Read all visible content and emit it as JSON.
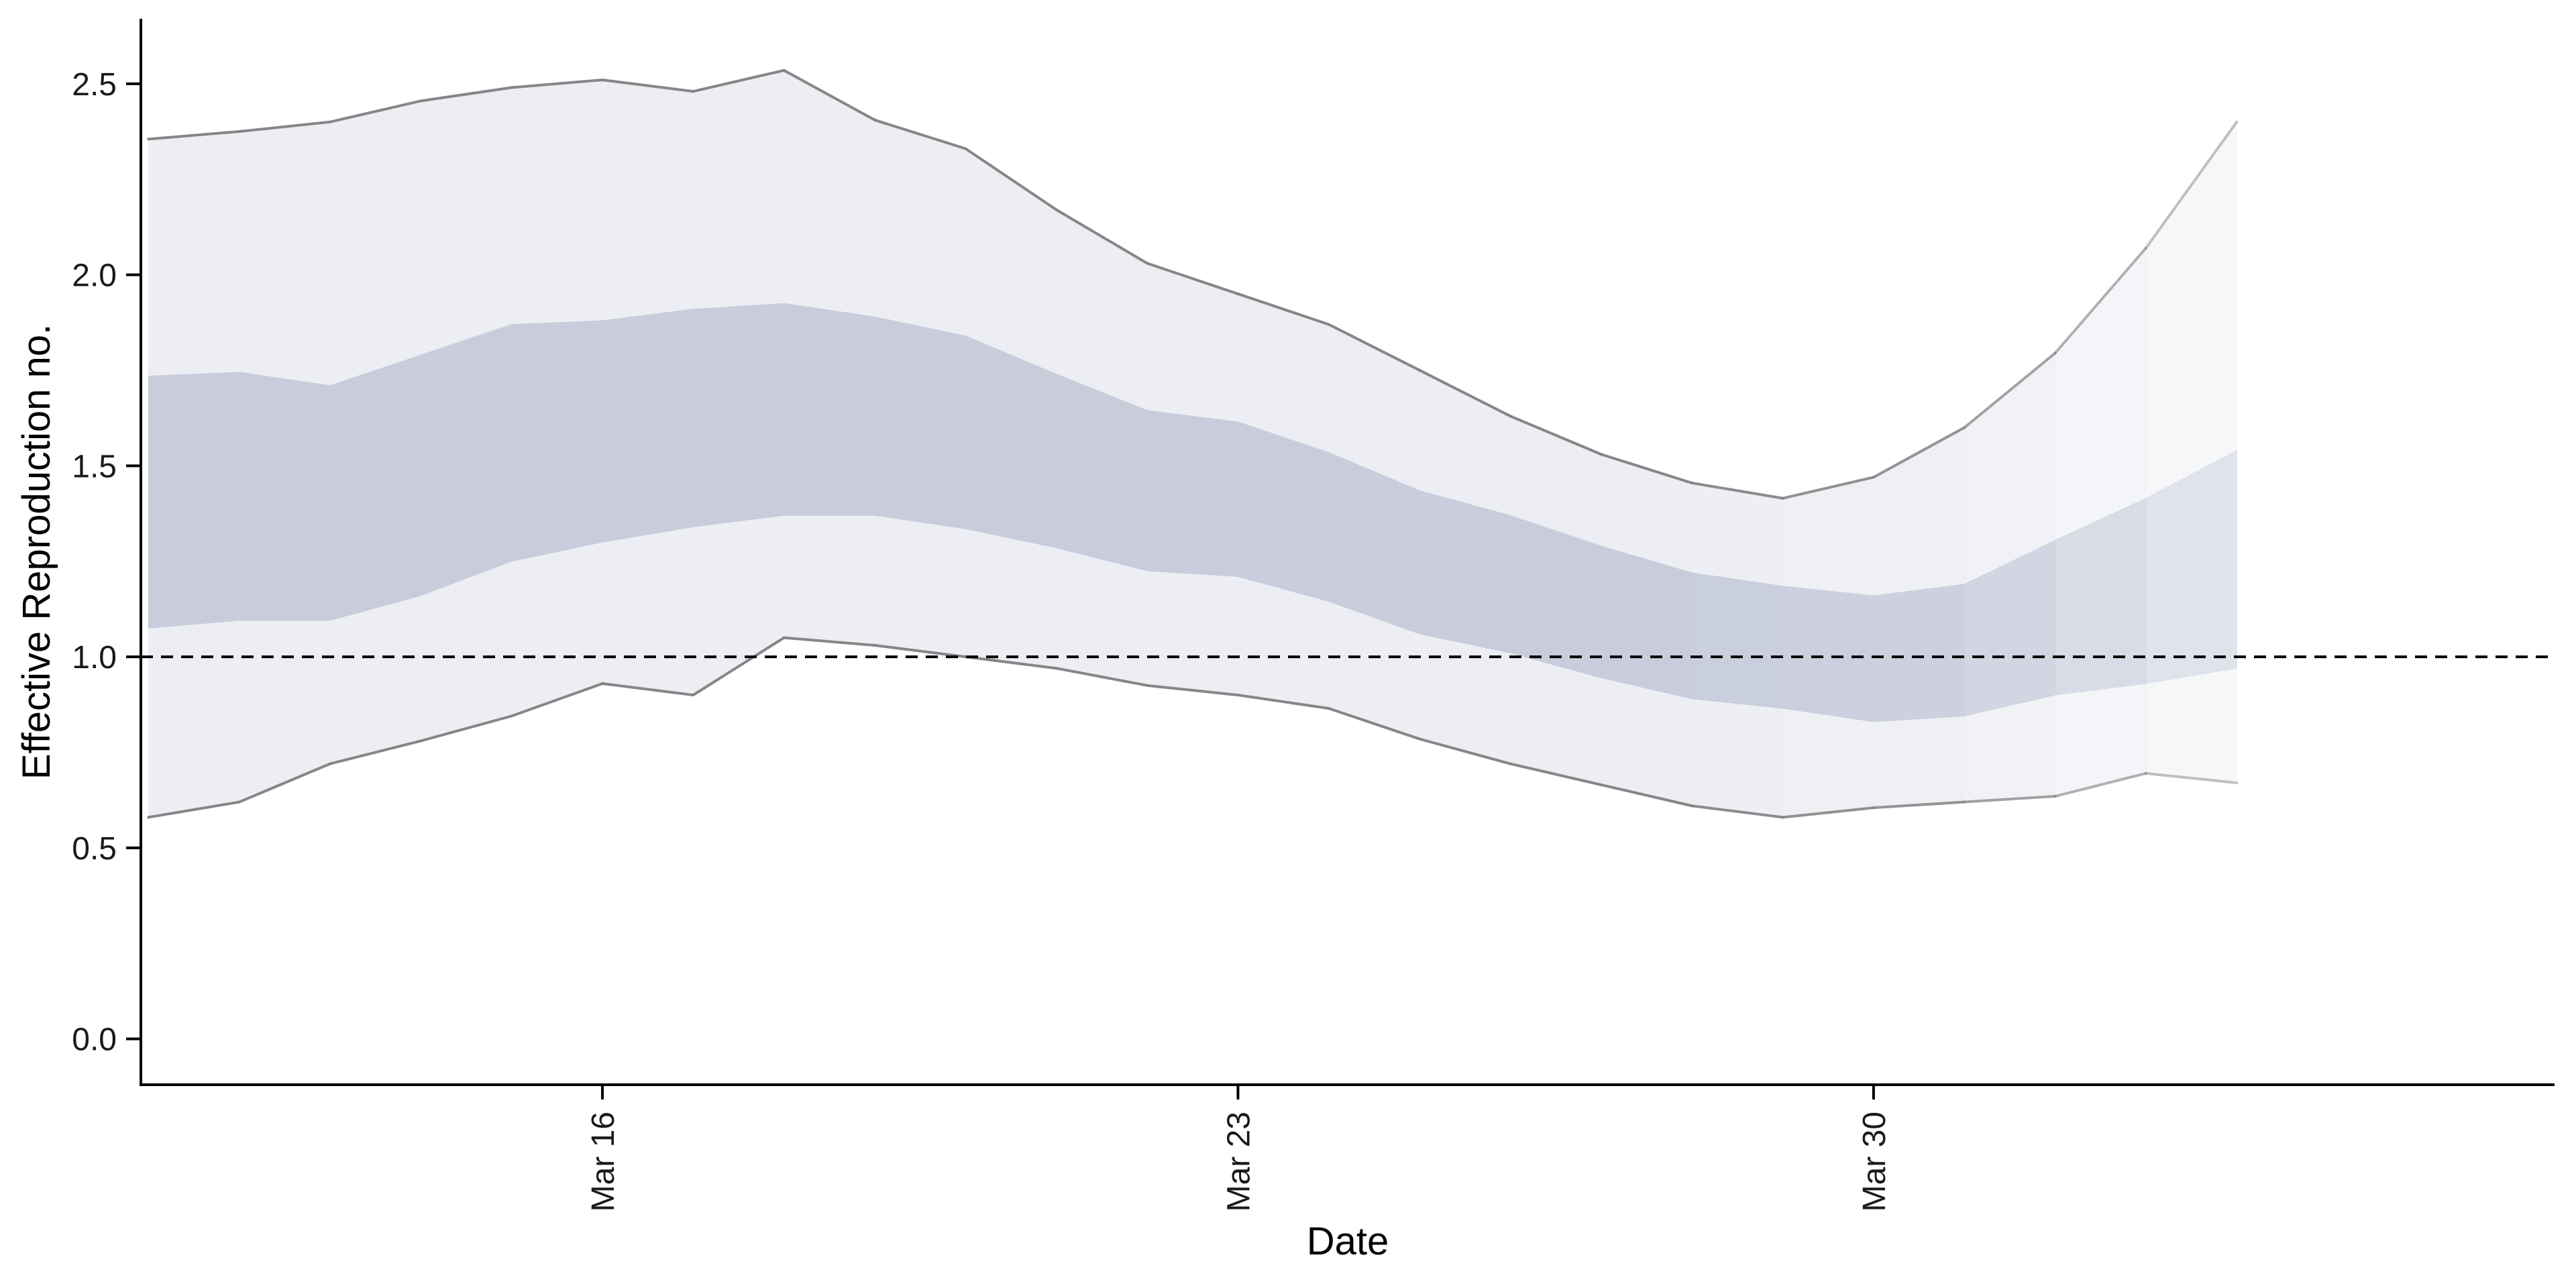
{
  "chart_data": {
    "type": "area",
    "xlabel": "Date",
    "ylabel": "Effective Reproduction no.",
    "ylim": [
      -0.12,
      2.67
    ],
    "xlim": [
      "2020-03-10T22:00",
      "2020-04-06T12:00"
    ],
    "x_ticks": [
      {
        "date": "2020-03-16",
        "label": "Mar 16"
      },
      {
        "date": "2020-03-23",
        "label": "Mar 23"
      },
      {
        "date": "2020-03-30",
        "label": "Mar 30"
      }
    ],
    "y_ticks": [
      {
        "value": 0.0,
        "label": "0.0"
      },
      {
        "value": 0.5,
        "label": "0.5"
      },
      {
        "value": 1.0,
        "label": "1.0"
      },
      {
        "value": 1.5,
        "label": "1.5"
      },
      {
        "value": 2.0,
        "label": "2.0"
      },
      {
        "value": 2.5,
        "label": "2.5"
      }
    ],
    "reference_line": {
      "y": 1.0,
      "style": "dashed"
    },
    "grid": false,
    "colors": {
      "outer_band": "#eceef3",
      "inner_band": "#c8ccdb",
      "bounds_line": "#808080",
      "reference_line": "#000000",
      "axis": "#000000"
    },
    "series": [
      {
        "dates": [
          "2020-03-11",
          "2020-03-12",
          "2020-03-13",
          "2020-03-14",
          "2020-03-15",
          "2020-03-16",
          "2020-03-17",
          "2020-03-18",
          "2020-03-19",
          "2020-03-20",
          "2020-03-21",
          "2020-03-22",
          "2020-03-23",
          "2020-03-24",
          "2020-03-25",
          "2020-03-26",
          "2020-03-27",
          "2020-03-28",
          "2020-03-29",
          "2020-03-30",
          "2020-03-31",
          "2020-04-01",
          "2020-04-02",
          "2020-04-03",
          "2020-04-04"
        ],
        "lower_90": [
          0.58,
          0.62,
          0.72,
          0.78,
          0.845,
          0.93,
          0.9,
          1.05,
          1.03,
          1.0,
          0.97,
          0.925,
          0.9,
          0.865,
          0.785,
          0.72,
          0.665,
          0.61,
          0.58,
          0.605,
          0.62,
          0.635,
          0.695,
          0.67,
          null
        ],
        "upper_90": [
          2.355,
          2.375,
          2.4,
          2.455,
          2.49,
          2.51,
          2.48,
          2.535,
          2.405,
          2.33,
          2.17,
          2.03,
          1.95,
          1.87,
          1.75,
          1.63,
          1.53,
          1.455,
          1.415,
          1.47,
          1.6,
          1.795,
          2.07,
          2.4,
          null
        ],
        "lower_50": [
          1.075,
          1.095,
          1.095,
          1.16,
          1.25,
          1.3,
          1.34,
          1.37,
          1.37,
          1.335,
          1.285,
          1.225,
          1.21,
          1.145,
          1.06,
          1.01,
          0.945,
          0.89,
          0.865,
          0.83,
          0.845,
          0.9,
          0.93,
          0.97,
          null
        ],
        "upper_50": [
          1.735,
          1.745,
          1.71,
          1.79,
          1.87,
          1.88,
          1.91,
          1.925,
          1.89,
          1.84,
          1.74,
          1.645,
          1.615,
          1.535,
          1.435,
          1.37,
          1.29,
          1.22,
          1.185,
          1.16,
          1.19,
          1.305,
          1.415,
          1.54,
          null
        ]
      }
    ]
  }
}
